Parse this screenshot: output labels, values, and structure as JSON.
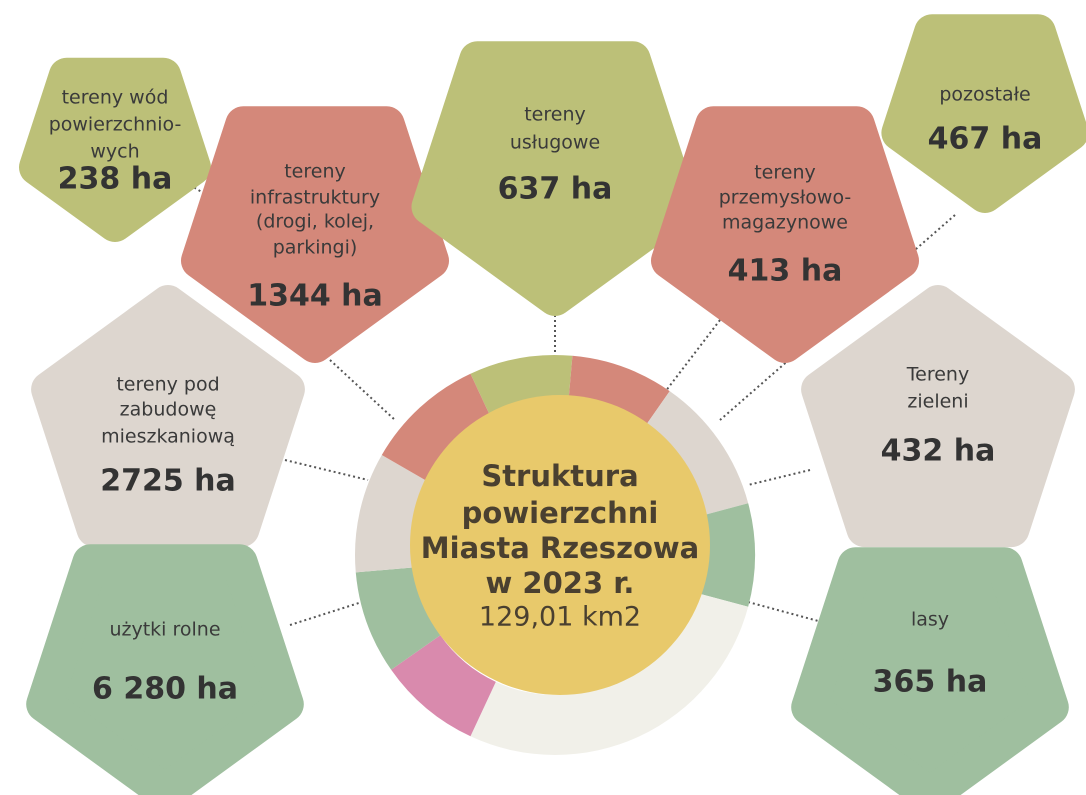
{
  "center": {
    "lines": [
      "Struktura",
      "powierzchni",
      "Miasta Rzeszowa",
      "w 2023 r."
    ],
    "total": "129,01 km2"
  },
  "nodes": [
    {
      "label": [
        "tereny wód",
        "powierzchnio-",
        "wych"
      ],
      "value": "238 ha"
    },
    {
      "label": [
        "tereny",
        "infrastruktury",
        "(drogi, kolej,",
        "parkingi)"
      ],
      "value": "1344 ha"
    },
    {
      "label": [
        "tereny",
        "usługowe"
      ],
      "value": "637 ha"
    },
    {
      "label": [
        "tereny",
        "przemysłowo-",
        "magazynowe"
      ],
      "value": "413 ha"
    },
    {
      "label": [
        "pozostałe"
      ],
      "value": "467 ha"
    },
    {
      "label": [
        "tereny pod",
        "zabudowę",
        "mieszkaniową"
      ],
      "value": "2725 ha"
    },
    {
      "label": [
        "Tereny",
        "zieleni"
      ],
      "value": "432 ha"
    },
    {
      "label": [
        "użytki rolne"
      ],
      "value": "6 280 ha"
    },
    {
      "label": [
        "lasy"
      ],
      "value": "365 ha"
    }
  ]
}
